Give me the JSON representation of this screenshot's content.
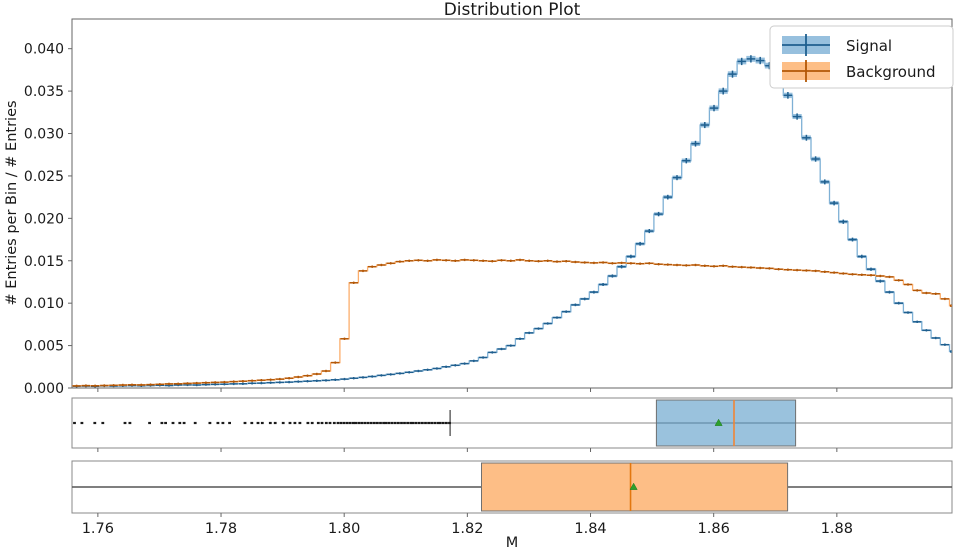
{
  "title": "Distribution Plot",
  "legend": {
    "items": [
      {
        "label": "Signal"
      },
      {
        "label": "Background"
      }
    ]
  },
  "chart_data": {
    "type": "histogram_with_boxplots",
    "title": "Distribution Plot",
    "xlabel": "M",
    "ylabel": "# Entries per Bin / # Entries",
    "xlim": [
      1.7558,
      1.8987
    ],
    "ylim": [
      0,
      0.0435
    ],
    "grid": false,
    "legend_position": "upper right",
    "xticks": [
      {
        "v": 1.76,
        "label": "1.76"
      },
      {
        "v": 1.78,
        "label": "1.78"
      },
      {
        "v": 1.8,
        "label": "1.80"
      },
      {
        "v": 1.82,
        "label": "1.82"
      },
      {
        "v": 1.84,
        "label": "1.84"
      },
      {
        "v": 1.86,
        "label": "1.86"
      },
      {
        "v": 1.88,
        "label": "1.88"
      }
    ],
    "yticks": [
      {
        "v": 0.0,
        "label": "0.000"
      },
      {
        "v": 0.005,
        "label": "0.005"
      },
      {
        "v": 0.01,
        "label": "0.010"
      },
      {
        "v": 0.015,
        "label": "0.015"
      },
      {
        "v": 0.02,
        "label": "0.020"
      },
      {
        "v": 0.025,
        "label": "0.025"
      },
      {
        "v": 0.03,
        "label": "0.030"
      },
      {
        "v": 0.035,
        "label": "0.035"
      },
      {
        "v": 0.04,
        "label": "0.040"
      }
    ],
    "bins": {
      "start": 1.7558,
      "width": 0.0015
    },
    "series": [
      {
        "name": "Signal",
        "colors": {
          "line": "#7eb0d5",
          "fill": "#97c0de",
          "marker": "#1f5f8f"
        },
        "err_scale": 0.0077,
        "err_base": 5e-05,
        "values": [
          0.0002,
          0.00022,
          0.0002,
          0.00025,
          0.00023,
          0.00026,
          0.00028,
          0.00026,
          0.0003,
          0.00032,
          0.0003,
          0.00035,
          0.00037,
          0.00035,
          0.0004,
          0.00042,
          0.00045,
          0.00048,
          0.0005,
          0.00055,
          0.00058,
          0.00062,
          0.00066,
          0.0007,
          0.00075,
          0.0008,
          0.00085,
          0.0009,
          0.00097,
          0.00105,
          0.00115,
          0.00125,
          0.00135,
          0.00148,
          0.0016,
          0.00172,
          0.00185,
          0.002,
          0.00215,
          0.0023,
          0.0025,
          0.00268,
          0.00288,
          0.0032,
          0.0036,
          0.0042,
          0.0046,
          0.005,
          0.0058,
          0.0065,
          0.007,
          0.0076,
          0.0083,
          0.009,
          0.0098,
          0.0105,
          0.0113,
          0.0122,
          0.0132,
          0.0143,
          0.0155,
          0.017,
          0.0185,
          0.0205,
          0.0225,
          0.0248,
          0.0268,
          0.0288,
          0.031,
          0.033,
          0.035,
          0.037,
          0.0385,
          0.0388,
          0.0386,
          0.038,
          0.0365,
          0.0345,
          0.032,
          0.0295,
          0.027,
          0.0243,
          0.0218,
          0.0196,
          0.0175,
          0.0155,
          0.014,
          0.0126,
          0.0113,
          0.01,
          0.0089,
          0.0078,
          0.0068,
          0.0059,
          0.0051,
          0.0043
        ]
      },
      {
        "name": "Background",
        "colors": {
          "line": "#fcae6c",
          "fill": "#fdbe86",
          "marker": "#b35706"
        },
        "err_scale": 0.003,
        "err_base": 3e-05,
        "values": [
          0.00025,
          0.00028,
          0.00026,
          0.0003,
          0.00032,
          0.00035,
          0.00038,
          0.00036,
          0.0004,
          0.00044,
          0.00048,
          0.0005,
          0.00054,
          0.00058,
          0.00062,
          0.00066,
          0.0007,
          0.00075,
          0.0008,
          0.00086,
          0.00092,
          0.00098,
          0.00105,
          0.00115,
          0.0013,
          0.00145,
          0.00165,
          0.002,
          0.003,
          0.0058,
          0.0124,
          0.0138,
          0.0143,
          0.0145,
          0.0147,
          0.0149,
          0.015,
          0.01505,
          0.015,
          0.0151,
          0.01505,
          0.015,
          0.0151,
          0.01505,
          0.015,
          0.01495,
          0.01505,
          0.015,
          0.0151,
          0.015,
          0.01495,
          0.015,
          0.0149,
          0.01495,
          0.01485,
          0.0148,
          0.01475,
          0.0148,
          0.0147,
          0.01475,
          0.0147,
          0.01465,
          0.0147,
          0.0146,
          0.01455,
          0.0145,
          0.01445,
          0.0145,
          0.0144,
          0.01435,
          0.0144,
          0.0143,
          0.01425,
          0.0142,
          0.01415,
          0.0141,
          0.014,
          0.01395,
          0.0139,
          0.01385,
          0.0138,
          0.0137,
          0.0136,
          0.0135,
          0.0134,
          0.01335,
          0.0133,
          0.0132,
          0.0131,
          0.0127,
          0.0122,
          0.0115,
          0.0112,
          0.0111,
          0.0105,
          0.0097
        ]
      }
    ],
    "boxplots": [
      {
        "name": "Signal",
        "q1": 1.8507,
        "median": 1.8633,
        "q3": 1.8733,
        "mean": 1.8608,
        "whisker_low": 1.8172,
        "whisker_high": 1.905,
        "colors": {
          "box": "rgba(31,119,180,0.45)",
          "edge": "#707070",
          "median": "#ef8536",
          "whisker": "#b0b0b0",
          "cap": "#4d4d4d",
          "flier": "#1a1a1a",
          "mean": "#2ca02c"
        },
        "whisker_full_width": true,
        "fliers": [
          1.7562,
          1.7574,
          1.7595,
          1.7608,
          1.7644,
          1.7652,
          1.7684,
          1.7704,
          1.771,
          1.7722,
          1.7733,
          1.774,
          1.7758,
          1.7782,
          1.7795,
          1.7803,
          1.7814,
          1.7839,
          1.785,
          1.786,
          1.7867,
          1.788,
          1.7888,
          1.7901,
          1.7912,
          1.792,
          1.7928,
          1.7941,
          1.7948,
          1.7958,
          1.7964,
          1.7971,
          1.7977,
          1.7984,
          1.799,
          1.7995,
          1.8,
          1.8005,
          1.801,
          1.8015,
          1.8019,
          1.8024,
          1.8029,
          1.8034,
          1.8039,
          1.8044,
          1.8049,
          1.8054,
          1.8059,
          1.8064,
          1.8068,
          1.8073,
          1.8078,
          1.8083,
          1.8088,
          1.8093,
          1.8098,
          1.8103,
          1.8108,
          1.8112,
          1.8117,
          1.8122,
          1.8127,
          1.8132,
          1.8137,
          1.8142,
          1.8147,
          1.8152,
          1.8156,
          1.8161,
          1.8166,
          1.8171
        ]
      },
      {
        "name": "Background",
        "q1": 1.8223,
        "median": 1.8465,
        "q3": 1.872,
        "mean": 1.847,
        "whisker_low": 1.74,
        "whisker_high": 1.905,
        "colors": {
          "box": "#fdbe86",
          "edge": "#707070",
          "median": "#e2770f",
          "whisker": "#555555",
          "cap": "#4d4d4d",
          "flier": "#1a1a1a",
          "mean": "#2ca02c"
        },
        "whisker_full_width": false,
        "fliers": []
      }
    ]
  }
}
